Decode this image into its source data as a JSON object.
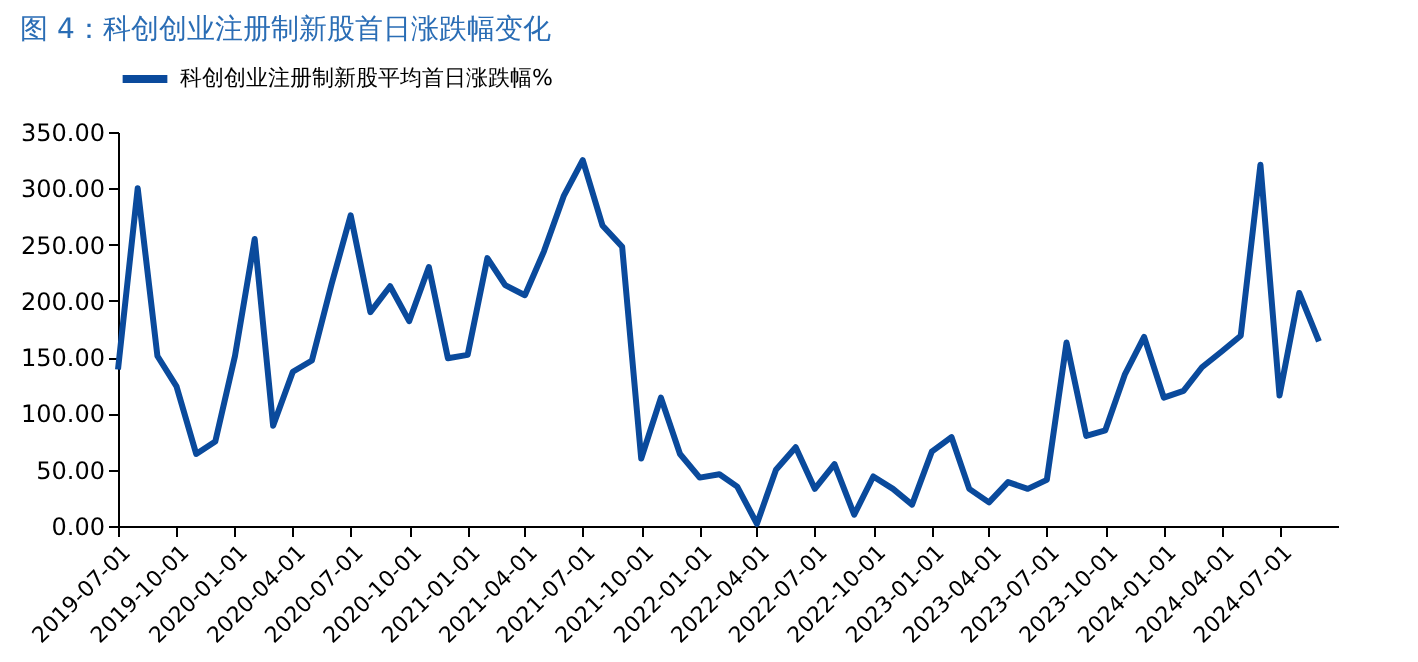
{
  "chart_data": {
    "type": "line",
    "title": "图 4：科创创业注册制新股首日涨跌幅变化",
    "x": [
      "2019-07",
      "2019-08",
      "2019-09",
      "2019-10",
      "2019-11",
      "2019-12",
      "2020-01",
      "2020-02",
      "2020-03",
      "2020-04",
      "2020-05",
      "2020-06",
      "2020-07",
      "2020-08",
      "2020-09",
      "2020-10",
      "2020-11",
      "2020-12",
      "2021-01",
      "2021-02",
      "2021-03",
      "2021-04",
      "2021-05",
      "2021-06",
      "2021-07",
      "2021-08",
      "2021-09",
      "2021-10",
      "2021-11",
      "2021-12",
      "2022-01",
      "2022-02",
      "2022-03",
      "2022-04",
      "2022-05",
      "2022-06",
      "2022-07",
      "2022-08",
      "2022-09",
      "2022-10",
      "2022-11",
      "2022-12",
      "2023-01",
      "2023-02",
      "2023-03",
      "2023-04",
      "2023-05",
      "2023-06",
      "2023-07",
      "2023-08",
      "2023-09",
      "2023-10",
      "2023-11",
      "2023-12",
      "2024-01",
      "2024-02",
      "2024-03",
      "2024-04",
      "2024-05",
      "2024-06",
      "2024-07",
      "2024-08",
      "2024-09"
    ],
    "series": [
      {
        "name": "科创创业注册制新股平均首日涨跌幅%",
        "color": "#0a4a9c",
        "values": [
          139,
          300,
          151,
          124,
          64,
          75,
          151,
          255,
          89,
          137,
          147,
          215,
          276,
          190,
          213,
          182,
          230,
          149,
          152,
          238,
          214,
          205,
          244,
          293,
          325,
          267,
          248,
          60,
          114,
          64,
          43,
          46,
          35,
          2,
          50,
          70,
          33,
          55,
          10,
          44,
          33,
          19,
          66,
          79,
          33,
          21,
          39,
          33,
          41,
          163,
          80,
          85,
          135,
          168,
          114,
          120,
          141,
          155,
          169,
          321,
          116,
          207,
          164
        ]
      }
    ],
    "xlim": [
      "2019-07-01",
      "2024-10-01"
    ],
    "xticks": [
      "2019-07-01",
      "2019-10-01",
      "2020-01-01",
      "2020-04-01",
      "2020-07-01",
      "2020-10-01",
      "2021-01-01",
      "2021-04-01",
      "2021-07-01",
      "2021-10-01",
      "2022-01-01",
      "2022-04-01",
      "2022-07-01",
      "2022-10-01",
      "2023-01-01",
      "2023-04-01",
      "2023-07-01",
      "2023-10-01",
      "2024-01-01",
      "2024-04-01",
      "2024-07-01"
    ],
    "ylim": [
      0,
      350
    ],
    "yticks": [
      {
        "value": 0,
        "label": "0.00"
      },
      {
        "value": 50,
        "label": "50.00"
      },
      {
        "value": 100,
        "label": "100.00"
      },
      {
        "value": 150,
        "label": "150.00"
      },
      {
        "value": 200,
        "label": "200.00"
      },
      {
        "value": 250,
        "label": "250.00"
      },
      {
        "value": 300,
        "label": "300.00"
      },
      {
        "value": 350,
        "label": "350.00"
      }
    ],
    "legend": "top",
    "grid": false,
    "marker": "none",
    "line_style": "solid"
  }
}
